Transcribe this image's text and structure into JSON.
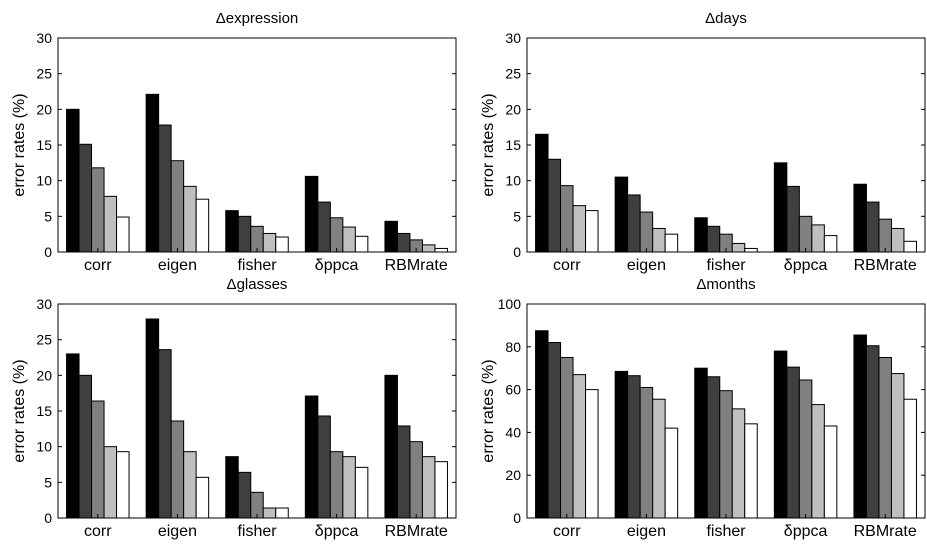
{
  "chart_data": [
    {
      "type": "bar",
      "title": "Δexpression",
      "ylabel": "error rates (%)",
      "xlabel": "",
      "ylim": [
        0,
        30
      ],
      "yticks": [
        0,
        5,
        10,
        15,
        20,
        25,
        30
      ],
      "grid": false,
      "categories": [
        "corr",
        "eigen",
        "fisher",
        "δppca",
        "RBMrate"
      ],
      "values": [
        [
          20.0,
          15.1,
          11.8,
          7.8,
          4.9
        ],
        [
          22.1,
          17.8,
          12.8,
          9.2,
          7.4
        ],
        [
          5.8,
          5.0,
          3.6,
          2.6,
          2.1
        ],
        [
          10.6,
          7.0,
          4.8,
          3.5,
          2.2
        ],
        [
          4.3,
          2.6,
          1.7,
          1.0,
          0.5
        ]
      ]
    },
    {
      "type": "bar",
      "title": "Δdays",
      "ylabel": "error rates (%)",
      "xlabel": "",
      "ylim": [
        0,
        30
      ],
      "yticks": [
        0,
        5,
        10,
        15,
        20,
        25,
        30
      ],
      "grid": false,
      "categories": [
        "corr",
        "eigen",
        "fisher",
        "δppca",
        "RBMrate"
      ],
      "values": [
        [
          16.5,
          13.0,
          9.3,
          6.5,
          5.8
        ],
        [
          10.5,
          8.0,
          5.6,
          3.3,
          2.5
        ],
        [
          4.8,
          3.6,
          2.5,
          1.2,
          0.5
        ],
        [
          12.5,
          9.2,
          5.0,
          3.8,
          2.3
        ],
        [
          9.5,
          7.0,
          4.6,
          3.3,
          1.5
        ]
      ]
    },
    {
      "type": "bar",
      "title": "Δglasses",
      "ylabel": "error rates (%)",
      "xlabel": "",
      "ylim": [
        0,
        30
      ],
      "yticks": [
        0,
        5,
        10,
        15,
        20,
        25,
        30
      ],
      "grid": false,
      "categories": [
        "corr",
        "eigen",
        "fisher",
        "δppca",
        "RBMrate"
      ],
      "values": [
        [
          23.0,
          20.0,
          16.4,
          10.0,
          9.3
        ],
        [
          27.9,
          23.6,
          13.6,
          9.3,
          5.7
        ],
        [
          8.6,
          6.4,
          3.6,
          1.4,
          1.4
        ],
        [
          17.1,
          14.3,
          9.3,
          8.6,
          7.1
        ],
        [
          20.0,
          12.9,
          10.7,
          8.6,
          7.9
        ]
      ]
    },
    {
      "type": "bar",
      "title": "Δmonths",
      "ylabel": "error rates (%)",
      "xlabel": "",
      "ylim": [
        0,
        100
      ],
      "yticks": [
        0,
        20,
        40,
        60,
        80,
        100
      ],
      "grid": false,
      "categories": [
        "corr",
        "eigen",
        "fisher",
        "δppca",
        "RBMrate"
      ],
      "values": [
        [
          87.5,
          82.0,
          75.0,
          67.0,
          60.0
        ],
        [
          68.5,
          66.5,
          61.0,
          55.5,
          42.0
        ],
        [
          70.0,
          66.0,
          59.5,
          51.0,
          44.0
        ],
        [
          78.0,
          70.5,
          64.5,
          53.0,
          43.0
        ],
        [
          85.5,
          80.5,
          75.0,
          67.5,
          55.5
        ]
      ]
    }
  ],
  "colors": {
    "bar_shades": [
      "#000000",
      "#3f3f3f",
      "#808080",
      "#bfbfbf",
      "#ffffff"
    ],
    "axis": "#000000",
    "background": "#ffffff"
  }
}
